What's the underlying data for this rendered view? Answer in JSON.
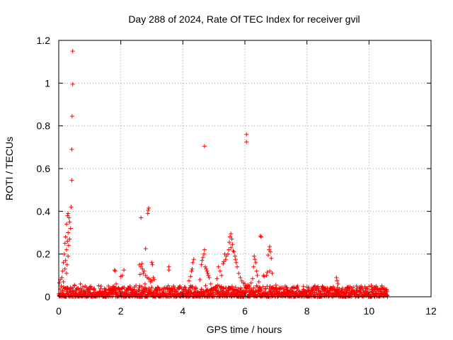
{
  "chart_data": {
    "type": "scatter",
    "title": "Day 288 of 2024, Rate Of TEC Index for receiver gvil",
    "xlabel": "GPS time / hours",
    "ylabel": "ROTI / TECUs",
    "xlim": [
      0,
      12
    ],
    "ylim": [
      0,
      1.2
    ],
    "xticks": [
      0,
      2,
      4,
      6,
      8,
      10,
      12
    ],
    "xtick_labels": [
      "0",
      "2",
      "4",
      "6",
      "8",
      "10",
      "12"
    ],
    "yticks": [
      0,
      0.2,
      0.4,
      0.6,
      0.8,
      1,
      1.2
    ],
    "ytick_labels": [
      "0",
      "0.2",
      "0.4",
      "0.6",
      "0.8",
      "1",
      "1.2"
    ],
    "grid": true,
    "marker": "+",
    "color": "#ff0000",
    "baseline_band": {
      "x_range": [
        0,
        10.6
      ],
      "y_range": [
        0.0,
        0.04
      ],
      "note": "dense continuous band of low ROTI values"
    },
    "series": [
      {
        "name": "ROTI",
        "points": [
          [
            0.45,
            1.15
          ],
          [
            0.45,
            0.995
          ],
          [
            0.43,
            0.845
          ],
          [
            0.42,
            0.69
          ],
          [
            0.42,
            0.545
          ],
          [
            0.4,
            0.42
          ],
          [
            0.3,
            0.39
          ],
          [
            0.28,
            0.38
          ],
          [
            0.33,
            0.37
          ],
          [
            0.35,
            0.35
          ],
          [
            0.25,
            0.34
          ],
          [
            0.38,
            0.32
          ],
          [
            0.3,
            0.3
          ],
          [
            0.22,
            0.28
          ],
          [
            0.35,
            0.27
          ],
          [
            0.28,
            0.26
          ],
          [
            0.2,
            0.25
          ],
          [
            0.32,
            0.24
          ],
          [
            0.25,
            0.22
          ],
          [
            0.18,
            0.2
          ],
          [
            0.3,
            0.19
          ],
          [
            0.22,
            0.17
          ],
          [
            0.15,
            0.16
          ],
          [
            0.27,
            0.15
          ],
          [
            0.2,
            0.13
          ],
          [
            0.12,
            0.12
          ],
          [
            0.25,
            0.11
          ],
          [
            0.1,
            0.09
          ],
          [
            0.05,
            0.08
          ],
          [
            0.15,
            0.07
          ],
          [
            0.02,
            0.065
          ],
          [
            0.08,
            0.05
          ],
          [
            0.7,
            0.06
          ],
          [
            0.85,
            0.05
          ],
          [
            1.8,
            0.125
          ],
          [
            1.82,
            0.12
          ],
          [
            1.85,
            0.06
          ],
          [
            2.1,
            0.125
          ],
          [
            2.05,
            0.1
          ],
          [
            2.0,
            0.095
          ],
          [
            1.6,
            0.05
          ],
          [
            2.3,
            0.05
          ],
          [
            2.9,
            0.415
          ],
          [
            2.88,
            0.405
          ],
          [
            2.87,
            0.39
          ],
          [
            2.65,
            0.37
          ],
          [
            2.8,
            0.225
          ],
          [
            2.6,
            0.15
          ],
          [
            2.65,
            0.14
          ],
          [
            2.7,
            0.13
          ],
          [
            2.75,
            0.12
          ],
          [
            2.72,
            0.11
          ],
          [
            2.8,
            0.1
          ],
          [
            2.85,
            0.09
          ],
          [
            2.9,
            0.085
          ],
          [
            2.95,
            0.08
          ],
          [
            3.0,
            0.16
          ],
          [
            3.02,
            0.15
          ],
          [
            3.05,
            0.09
          ],
          [
            3.0,
            0.075
          ],
          [
            2.95,
            0.07
          ],
          [
            3.08,
            0.08
          ],
          [
            2.68,
            0.155
          ],
          [
            2.62,
            0.105
          ],
          [
            2.78,
            0.06
          ],
          [
            3.55,
            0.14
          ],
          [
            3.55,
            0.125
          ],
          [
            3.7,
            0.05
          ],
          [
            3.9,
            0.05
          ],
          [
            4.35,
            0.175
          ],
          [
            4.32,
            0.16
          ],
          [
            4.3,
            0.13
          ],
          [
            4.28,
            0.12
          ],
          [
            4.25,
            0.095
          ],
          [
            4.2,
            0.075
          ],
          [
            4.7,
            0.705
          ],
          [
            4.7,
            0.22
          ],
          [
            4.68,
            0.2
          ],
          [
            4.65,
            0.185
          ],
          [
            4.62,
            0.17
          ],
          [
            4.6,
            0.15
          ],
          [
            4.72,
            0.14
          ],
          [
            4.75,
            0.13
          ],
          [
            4.78,
            0.12
          ],
          [
            4.8,
            0.11
          ],
          [
            4.85,
            0.09
          ],
          [
            4.82,
            0.1
          ],
          [
            4.9,
            0.06
          ],
          [
            4.55,
            0.08
          ],
          [
            5.15,
            0.14
          ],
          [
            5.2,
            0.12
          ],
          [
            5.25,
            0.1
          ],
          [
            5.1,
            0.085
          ],
          [
            5.3,
            0.155
          ],
          [
            5.35,
            0.2
          ],
          [
            5.4,
            0.19
          ],
          [
            5.38,
            0.175
          ],
          [
            5.32,
            0.165
          ],
          [
            5.55,
            0.295
          ],
          [
            5.52,
            0.28
          ],
          [
            5.58,
            0.27
          ],
          [
            5.5,
            0.255
          ],
          [
            5.6,
            0.245
          ],
          [
            5.55,
            0.23
          ],
          [
            5.48,
            0.22
          ],
          [
            5.62,
            0.215
          ],
          [
            5.65,
            0.21
          ],
          [
            5.45,
            0.2
          ],
          [
            5.68,
            0.19
          ],
          [
            5.7,
            0.175
          ],
          [
            5.72,
            0.16
          ],
          [
            5.75,
            0.14
          ],
          [
            5.8,
            0.11
          ],
          [
            5.85,
            0.09
          ],
          [
            5.9,
            0.075
          ],
          [
            5.95,
            0.065
          ],
          [
            6.05,
            0.76
          ],
          [
            6.05,
            0.725
          ],
          [
            6.0,
            0.06
          ],
          [
            6.1,
            0.055
          ],
          [
            6.2,
            0.065
          ],
          [
            6.15,
            0.05
          ],
          [
            6.3,
            0.19
          ],
          [
            6.32,
            0.175
          ],
          [
            6.35,
            0.16
          ],
          [
            6.28,
            0.14
          ],
          [
            6.38,
            0.12
          ],
          [
            6.4,
            0.1
          ],
          [
            6.25,
            0.085
          ],
          [
            6.45,
            0.07
          ],
          [
            6.5,
            0.285
          ],
          [
            6.52,
            0.28
          ],
          [
            6.6,
            0.1
          ],
          [
            6.62,
            0.095
          ],
          [
            6.8,
            0.235
          ],
          [
            6.78,
            0.22
          ],
          [
            6.82,
            0.21
          ],
          [
            6.75,
            0.195
          ],
          [
            6.85,
            0.18
          ],
          [
            6.8,
            0.12
          ],
          [
            6.72,
            0.115
          ],
          [
            6.88,
            0.11
          ],
          [
            6.7,
            0.1
          ],
          [
            7.0,
            0.055
          ],
          [
            7.3,
            0.05
          ],
          [
            7.7,
            0.05
          ],
          [
            8.0,
            0.045
          ],
          [
            8.5,
            0.05
          ],
          [
            8.95,
            0.09
          ],
          [
            8.97,
            0.075
          ],
          [
            9.0,
            0.06
          ],
          [
            9.3,
            0.045
          ],
          [
            9.6,
            0.05
          ],
          [
            9.9,
            0.04
          ],
          [
            10.2,
            0.045
          ],
          [
            10.45,
            0.035
          ]
        ]
      }
    ]
  }
}
